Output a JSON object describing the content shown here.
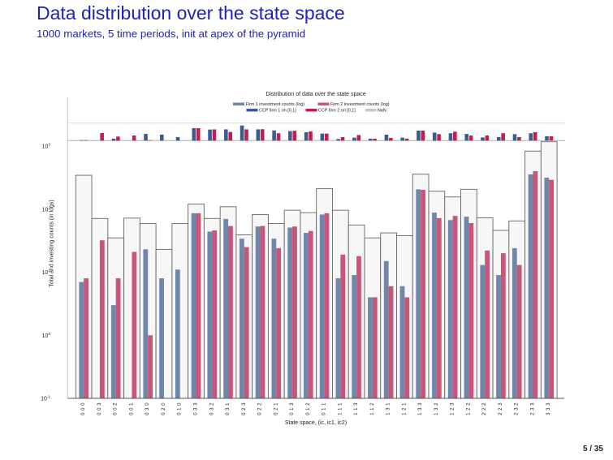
{
  "slide": {
    "title": "Data distribution over the state space",
    "subtitle": "1000 markets, 5 time periods, init at apex of the pyramid",
    "page": "5 / 35"
  },
  "chart_data": {
    "type": "bar",
    "title": "Distribution of data over the state space",
    "xlabel": "State space, (ic, ic1, ic2)",
    "ylabel": "Total and investing counts (in logs)",
    "yscale": "log",
    "ylim": [
      0.1,
      1230
    ],
    "grid": false,
    "y_ticks": [
      {
        "base": "10",
        "exp": "-1",
        "value": 0.1
      },
      {
        "base": "10",
        "exp": "0",
        "value": 1
      },
      {
        "base": "10",
        "exp": "1",
        "value": 10
      },
      {
        "base": "10",
        "exp": "2",
        "value": 100
      },
      {
        "base": "10",
        "exp": "3",
        "value": 1000
      }
    ],
    "categories": [
      "0 0 0",
      "0 0 3",
      "0 0 2",
      "0 0 1",
      "0 3 0",
      "0 2 0",
      "0 1 0",
      "0 3 3",
      "0 3 2",
      "0 3 1",
      "0 2 3",
      "0 2 2",
      "0 2 1",
      "0 1 3",
      "0 1 2",
      "0 1 1",
      "1 1 1",
      "1 1 3",
      "1 1 2",
      "1 3 1",
      "1 2 1",
      "1 3 3",
      "1 3 2",
      "1 2 3",
      "1 2 2",
      "2 2 2",
      "2 2 3",
      "2 3 2",
      "2 3 3",
      "3 3 3"
    ],
    "series": [
      {
        "name": "Total",
        "role": "total",
        "color": "#f7f7f7",
        "values": [
          344,
          71,
          35,
          72,
          59,
          23,
          59,
          120,
          71,
          109,
          39,
          82,
          59,
          96,
          88,
          212,
          96,
          56,
          35,
          42,
          38,
          358,
          192,
          156,
          206,
          73,
          46,
          65,
          830,
          1170
        ]
      },
      {
        "name": "Firm 1 investment counts (log)",
        "role": "firm1",
        "color": "#6f87ad",
        "values": [
          7,
          null,
          3,
          null,
          23,
          8,
          11,
          86,
          44,
          70,
          34,
          53,
          34,
          51,
          42,
          82,
          8,
          9,
          4,
          15,
          6,
          206,
          88,
          67,
          76,
          13,
          9,
          24,
          355,
          315
        ]
      },
      {
        "name": "Firm 2 investment counts (log)",
        "role": "firm2",
        "color": "#cb5578",
        "values": [
          8,
          32,
          8,
          21,
          1,
          null,
          null,
          86,
          46,
          54,
          25,
          54,
          24,
          53,
          45,
          86,
          19,
          18,
          4,
          6,
          4,
          202,
          72,
          78,
          60,
          22,
          20,
          13,
          399,
          291
        ]
      }
    ],
    "top_panel": {
      "type": "bar",
      "ylim": [
        0,
        2.5
      ],
      "gridlines": [
        1
      ],
      "series": [
        {
          "name": "CCP firm 1 on [0,1]",
          "color": "#3b5b93",
          "values": [
            0.02,
            0,
            0.11,
            0,
            0.38,
            0.34,
            0.2,
            0.71,
            0.63,
            0.64,
            0.86,
            0.64,
            0.58,
            0.54,
            0.48,
            0.4,
            0.09,
            0.17,
            0.11,
            0.34,
            0.17,
            0.57,
            0.46,
            0.42,
            0.38,
            0.18,
            0.2,
            0.37,
            0.42,
            0.25
          ]
        },
        {
          "name": "CCP firm 2 on [0,1]",
          "color": "#c41e50",
          "values": [
            0.02,
            0.43,
            0.23,
            0.29,
            0.02,
            0,
            0,
            0.71,
            0.64,
            0.49,
            0.64,
            0.65,
            0.42,
            0.56,
            0.52,
            0.4,
            0.2,
            0.32,
            0.11,
            0.15,
            0.11,
            0.57,
            0.37,
            0.51,
            0.29,
            0.29,
            0.42,
            0.2,
            0.48,
            0.25
          ]
        }
      ]
    },
    "legend": {
      "placement": "top-center",
      "entries": [
        {
          "label": "Firm 1 investment counts (log)",
          "color": "#6f87ad"
        },
        {
          "label": "Firm 2 investment counts (log)",
          "color": "#cb5578"
        },
        {
          "label": "CCP firm 1 on [0,1]",
          "color": "#3b5b93"
        },
        {
          "label": "CCP firm 2 on [0,1]",
          "color": "#c41e50"
        },
        {
          "label": "NaN",
          "color": "#c8c8c8"
        }
      ]
    }
  }
}
